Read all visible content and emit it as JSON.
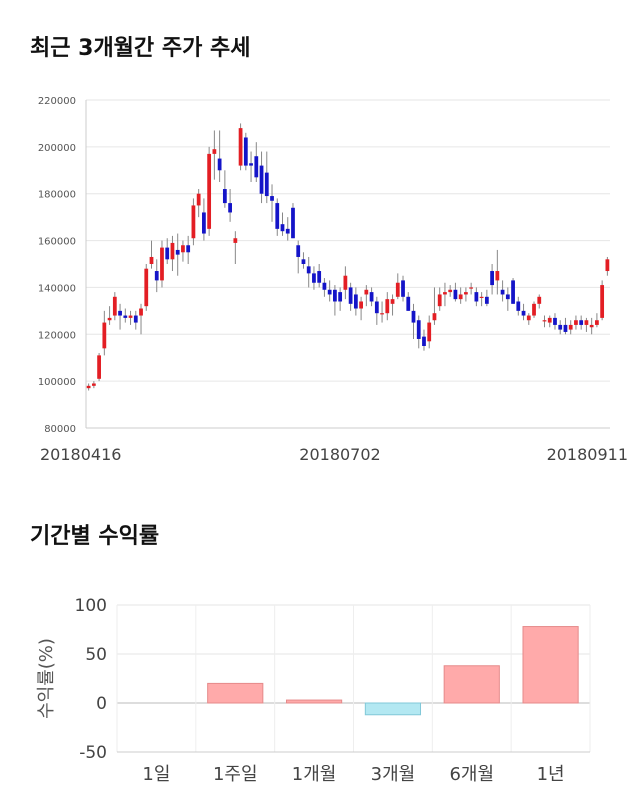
{
  "titles": {
    "price": "최근 3개월간 주가 추세",
    "returns": "기간별 수익률"
  },
  "chart_data": [
    {
      "type": "candlestick",
      "title": "최근 3개월간 주가 추세",
      "ylim": [
        80000,
        220000
      ],
      "y_ticks": [
        80000,
        100000,
        120000,
        140000,
        160000,
        180000,
        200000,
        220000
      ],
      "x_tick_labels": [
        {
          "index": 0,
          "label": "20180416"
        },
        {
          "index": 54,
          "label": "20180702"
        },
        {
          "index": 108,
          "label": "20180911"
        }
      ],
      "colors": {
        "up": "#e31e24",
        "down": "#1414c8",
        "wick": "#888888",
        "grid": "#e6e6e6"
      },
      "ohlc": [
        [
          97000,
          99000,
          96000,
          98000
        ],
        [
          98000,
          100000,
          97000,
          99000
        ],
        [
          101000,
          112000,
          100000,
          111000
        ],
        [
          114000,
          130000,
          111000,
          125000
        ],
        [
          126000,
          132000,
          124000,
          127000
        ],
        [
          128000,
          138000,
          126000,
          136000
        ],
        [
          130000,
          133000,
          122000,
          128000
        ],
        [
          128000,
          131000,
          125000,
          127000
        ],
        [
          127000,
          130000,
          124000,
          128000
        ],
        [
          128000,
          130000,
          122000,
          125000
        ],
        [
          128000,
          133000,
          120000,
          131000
        ],
        [
          132000,
          150000,
          130000,
          148000
        ],
        [
          150000,
          160000,
          148000,
          153000
        ],
        [
          147000,
          152000,
          138000,
          143000
        ],
        [
          143000,
          160000,
          140000,
          157000
        ],
        [
          157000,
          161000,
          150000,
          152000
        ],
        [
          152000,
          162000,
          147000,
          159000
        ],
        [
          156000,
          163000,
          145000,
          154000
        ],
        [
          155000,
          160000,
          151000,
          158000
        ],
        [
          158000,
          162000,
          150000,
          155000
        ],
        [
          161000,
          178000,
          158000,
          175000
        ],
        [
          175000,
          182000,
          170000,
          180000
        ],
        [
          172000,
          178000,
          160000,
          163000
        ],
        [
          165000,
          200000,
          162000,
          197000
        ],
        [
          197000,
          207000,
          186000,
          199000
        ],
        [
          195000,
          207000,
          185000,
          190000
        ],
        [
          182000,
          190000,
          174000,
          176000
        ],
        [
          176000,
          182000,
          168000,
          172000
        ],
        [
          159000,
          164000,
          150000,
          161000
        ],
        [
          192000,
          210000,
          190000,
          208000
        ],
        [
          204000,
          206000,
          190000,
          192000
        ],
        [
          193000,
          198000,
          185000,
          192000
        ],
        [
          196000,
          202000,
          185000,
          187000
        ],
        [
          192000,
          198000,
          176000,
          180000
        ],
        [
          189000,
          198000,
          176000,
          179000
        ],
        [
          179000,
          184000,
          168000,
          177000
        ],
        [
          176000,
          178000,
          162000,
          165000
        ],
        [
          167000,
          172000,
          162000,
          164000
        ],
        [
          165000,
          170000,
          160000,
          163000
        ],
        [
          174000,
          176000,
          161000,
          161000
        ],
        [
          158000,
          160000,
          146000,
          153000
        ],
        [
          152000,
          155000,
          148000,
          150000
        ],
        [
          149000,
          153000,
          140000,
          146000
        ],
        [
          146000,
          149000,
          139000,
          142000
        ],
        [
          147000,
          150000,
          140000,
          142000
        ],
        [
          142000,
          144000,
          136000,
          139000
        ],
        [
          139000,
          143000,
          134000,
          137000
        ],
        [
          139000,
          141000,
          128000,
          134000
        ],
        [
          138000,
          140000,
          130000,
          134000
        ],
        [
          139000,
          149000,
          135000,
          145000
        ],
        [
          140000,
          142000,
          130000,
          133000
        ],
        [
          137000,
          140000,
          128000,
          131000
        ],
        [
          131000,
          136000,
          126000,
          134000
        ],
        [
          137000,
          141000,
          132000,
          139000
        ],
        [
          138000,
          140000,
          132000,
          134000
        ],
        [
          134000,
          136000,
          124000,
          129000
        ],
        [
          129000,
          134000,
          125000,
          129000
        ],
        [
          129000,
          138000,
          126000,
          135000
        ],
        [
          133000,
          137000,
          128000,
          135000
        ],
        [
          136000,
          146000,
          135000,
          142000
        ],
        [
          143000,
          145000,
          134000,
          136000
        ],
        [
          136000,
          138000,
          130000,
          130000
        ],
        [
          130000,
          133000,
          118000,
          125000
        ],
        [
          126000,
          128000,
          114000,
          118000
        ],
        [
          119000,
          122000,
          113000,
          115000
        ],
        [
          117000,
          128000,
          114000,
          125000
        ],
        [
          126000,
          140000,
          124000,
          129000
        ],
        [
          132000,
          140000,
          130000,
          137000
        ],
        [
          137000,
          142000,
          132000,
          138000
        ],
        [
          138000,
          141000,
          136000,
          139000
        ],
        [
          139000,
          142000,
          134000,
          135000
        ],
        [
          135000,
          140000,
          133000,
          137000
        ],
        [
          137000,
          140000,
          134000,
          138000
        ],
        [
          140000,
          142000,
          137000,
          140000
        ],
        [
          138000,
          140000,
          132000,
          134000
        ],
        [
          136000,
          138000,
          132000,
          136000
        ],
        [
          136000,
          139000,
          132000,
          133000
        ],
        [
          147000,
          150000,
          137000,
          141000
        ],
        [
          143000,
          156000,
          137000,
          147000
        ],
        [
          139000,
          143000,
          134000,
          137000
        ],
        [
          137000,
          140000,
          130000,
          135000
        ],
        [
          143000,
          144000,
          133000,
          133000
        ],
        [
          134000,
          136000,
          128000,
          130000
        ],
        [
          130000,
          133000,
          126000,
          128000
        ],
        [
          126000,
          129000,
          124000,
          128000
        ],
        [
          128000,
          134000,
          127000,
          133000
        ],
        [
          133000,
          137000,
          131000,
          136000
        ],
        [
          126000,
          128000,
          123000,
          126000
        ],
        [
          125000,
          128000,
          123000,
          127000
        ],
        [
          127000,
          129000,
          122000,
          124000
        ],
        [
          124000,
          126000,
          120000,
          122000
        ],
        [
          124000,
          127000,
          120000,
          121000
        ],
        [
          122000,
          126000,
          120000,
          124000
        ],
        [
          124000,
          128000,
          122000,
          126000
        ],
        [
          126000,
          128000,
          122000,
          124000
        ],
        [
          124000,
          127000,
          121000,
          126000
        ],
        [
          123000,
          127000,
          120000,
          124000
        ],
        [
          124000,
          129000,
          123000,
          126000
        ],
        [
          127000,
          143000,
          126000,
          141000
        ],
        [
          147000,
          153000,
          145000,
          152000
        ]
      ]
    },
    {
      "type": "bar",
      "title": "기간별 수익률",
      "ylabel": "수익률(%)",
      "ylim": [
        -50,
        100
      ],
      "y_ticks": [
        -50,
        0,
        50,
        100
      ],
      "categories": [
        "1일",
        "1주일",
        "1개월",
        "3개월",
        "6개월",
        "1년"
      ],
      "values": [
        0,
        20,
        3,
        -12,
        38,
        78
      ],
      "colors": {
        "positive": "#ffaaaa",
        "positive_edge": "#e58a8a",
        "negative": "#b3e8f2",
        "negative_edge": "#82c8d8"
      }
    }
  ]
}
